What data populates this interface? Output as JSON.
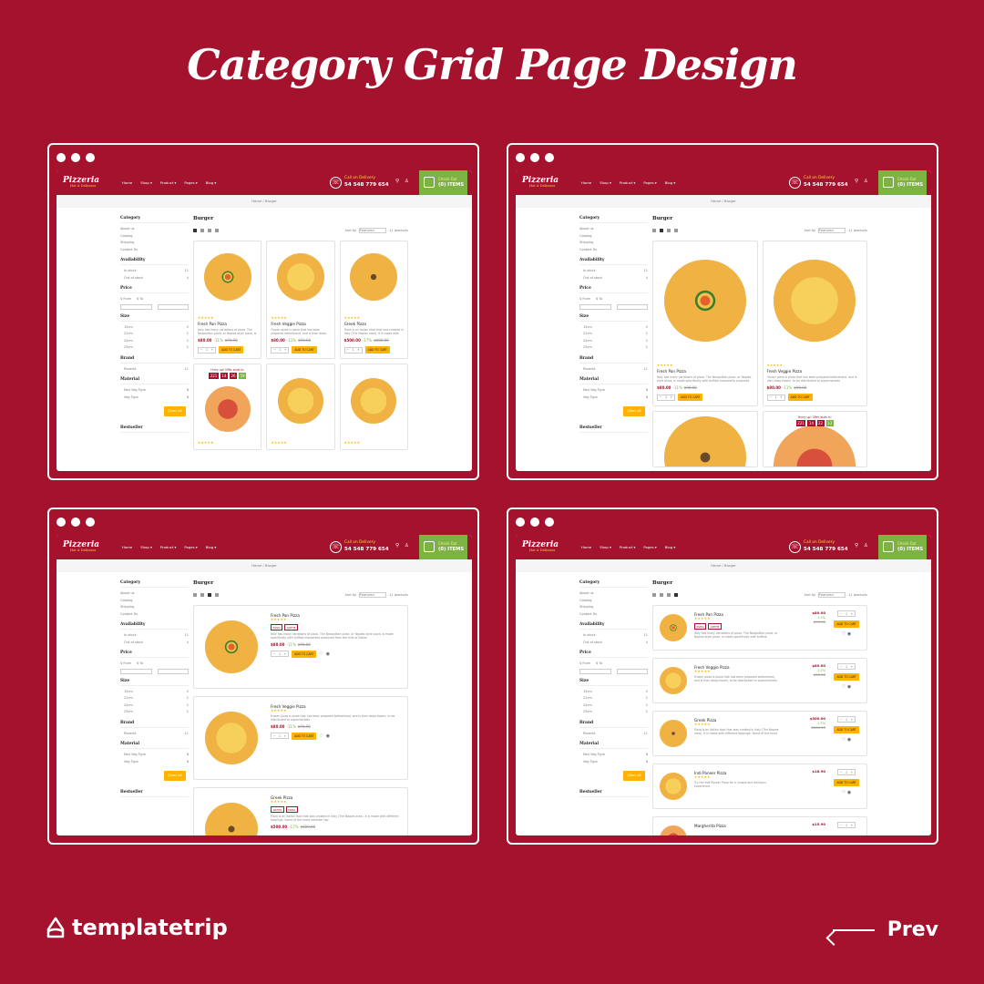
{
  "page_title": "Category Grid Page Design",
  "header": {
    "logo": "Pizzeria",
    "logo_tagline": "Hot & Delicious",
    "nav": [
      "Home",
      "Shop ▾",
      "Product ▾",
      "Pages ▾",
      "Blog ▾"
    ],
    "call_label": "Call on Delivery",
    "phone": "54 548 779 654",
    "cart_label": "Check Out",
    "cart_count": "(0) ITEMS"
  },
  "breadcrumb": "Home / Burger",
  "sidebar": {
    "category_title": "Category",
    "categories": [
      "About us",
      "Catalog",
      "Shipping",
      "Contact Us"
    ],
    "availability_title": "Availability",
    "availability": [
      {
        "label": "In stock",
        "count": "11"
      },
      {
        "label": "Out of stock",
        "count": "4"
      }
    ],
    "price_title": "Price",
    "price_from": "$ From",
    "price_to": "$ To",
    "size_title": "Size",
    "sizes": [
      {
        "label": "15cm",
        "count": "5"
      },
      {
        "label": "21cm",
        "count": "1"
      },
      {
        "label": "24cm",
        "count": "2"
      },
      {
        "label": "25cm",
        "count": "2"
      }
    ],
    "brand_title": "Brand",
    "brands": [
      {
        "label": "Pizzeria",
        "count": "11"
      }
    ],
    "material_title": "Material",
    "materials": [
      {
        "label": "Non Veg Type",
        "count": "6"
      },
      {
        "label": "Veg Type",
        "count": "6"
      }
    ],
    "clear_all": "Clear all",
    "bestseller_title": "Bestseller"
  },
  "main": {
    "title": "Burger",
    "sort_label": "Sort by",
    "sort_value": "Featured",
    "count": "11 products"
  },
  "products": [
    {
      "name": "Fresh Pan Pizza",
      "price": "$80.00",
      "discount": "-11%",
      "old": "$90.00",
      "desc": "Italy has many variations of pizza. The Neapolitan pizza, or Naples-style pizza, is made specifically with buffalo mozzarella produced from the milk of Italian"
    },
    {
      "name": "Fresh Veggie Pizza",
      "price": "$80.00",
      "discount": "-11%",
      "old": "$90.00",
      "desc": "Frozen pizza is pizza that has been prepared beforehand, and is then deep-frozen, to be distributed to supermarkets"
    },
    {
      "name": "Greek Pizza",
      "price": "$500.00",
      "discount": "-17%",
      "old": "$600.00",
      "desc": "Pizza is an Italian food that was created in Italy (The Naples area). It is made with different toppings. Some of the most common top"
    },
    {
      "name": "Indi Paneer Pizza",
      "price": "$18.90",
      "discount": "",
      "old": "",
      "desc": "Try the Indi Paneer Pizza for a unique and delicious experience."
    },
    {
      "name": "Margherita Pizza",
      "price": "$15.90",
      "discount": "",
      "old": "",
      "desc": ""
    }
  ],
  "stars": "★★★★★",
  "add_to_cart": "ADD TO CART",
  "qty": "1",
  "timer": {
    "label": "Hurry up! Offer ends in:",
    "days": "221",
    "hours": "14",
    "mins": "26",
    "secs": "59"
  },
  "timer2": {
    "days": "221",
    "hours": "14",
    "mins": "22",
    "secs": "13"
  },
  "tags": [
    "PIZZA",
    "ANTHE"
  ],
  "footer": {
    "brand": "templatetrip",
    "prev": "Prev"
  }
}
